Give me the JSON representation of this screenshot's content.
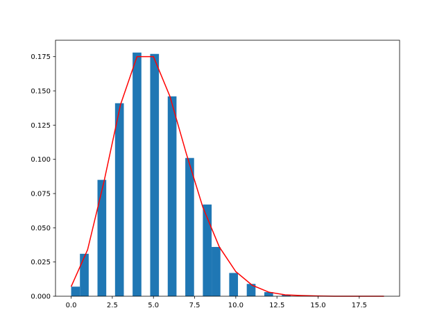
{
  "chart_data": {
    "type": "histogram",
    "bins": [
      0,
      0.5333,
      1.0667,
      1.6,
      2.1333,
      2.6667,
      3.2,
      3.7333,
      4.2667,
      4.8,
      5.3333,
      5.8667,
      6.4,
      6.9333,
      7.4667,
      8.0,
      8.5333,
      9.0667,
      9.6,
      10.1333,
      10.6667,
      11.2,
      11.7333,
      12.2667,
      12.8,
      13.3333,
      13.8667,
      14.4,
      14.9333,
      15.4667,
      16.0
    ],
    "values": [
      0.007,
      0.031,
      0,
      0.085,
      0,
      0.141,
      0,
      0.178,
      0,
      0.177,
      0,
      0.146,
      0,
      0.101,
      0,
      0.067,
      0.036,
      0,
      0.017,
      0,
      0.009,
      0,
      0.003,
      0,
      0.001,
      0,
      0,
      0,
      0,
      0
    ],
    "color": "#1f77b4",
    "overlay": {
      "type": "line",
      "color": "#ff0000",
      "x": [
        0,
        1,
        2,
        3,
        4,
        5,
        6,
        7,
        8,
        9,
        10,
        11,
        12,
        13,
        14,
        15,
        16,
        17,
        18,
        19
      ],
      "values": [
        0.007,
        0.034,
        0.084,
        0.14,
        0.175,
        0.175,
        0.146,
        0.104,
        0.065,
        0.036,
        0.018,
        0.008,
        0.003,
        0.001,
        0.0005,
        0.0002,
        0,
        0,
        0,
        0
      ]
    },
    "xlim": [
      -0.95,
      19.95
    ],
    "ylim": [
      0,
      0.187
    ],
    "xticks": [
      {
        "value": 0,
        "label": "0.0"
      },
      {
        "value": 2.5,
        "label": "2.5"
      },
      {
        "value": 5,
        "label": "5.0"
      },
      {
        "value": 7.5,
        "label": "7.5"
      },
      {
        "value": 10,
        "label": "10.0"
      },
      {
        "value": 12.5,
        "label": "12.5"
      },
      {
        "value": 15,
        "label": "15.0"
      },
      {
        "value": 17.5,
        "label": "17.5"
      }
    ],
    "yticks": [
      {
        "value": 0,
        "label": "0.000"
      },
      {
        "value": 0.025,
        "label": "0.025"
      },
      {
        "value": 0.05,
        "label": "0.050"
      },
      {
        "value": 0.075,
        "label": "0.075"
      },
      {
        "value": 0.1,
        "label": "0.100"
      },
      {
        "value": 0.125,
        "label": "0.125"
      },
      {
        "value": 0.15,
        "label": "0.150"
      },
      {
        "value": 0.175,
        "label": "0.175"
      }
    ]
  }
}
